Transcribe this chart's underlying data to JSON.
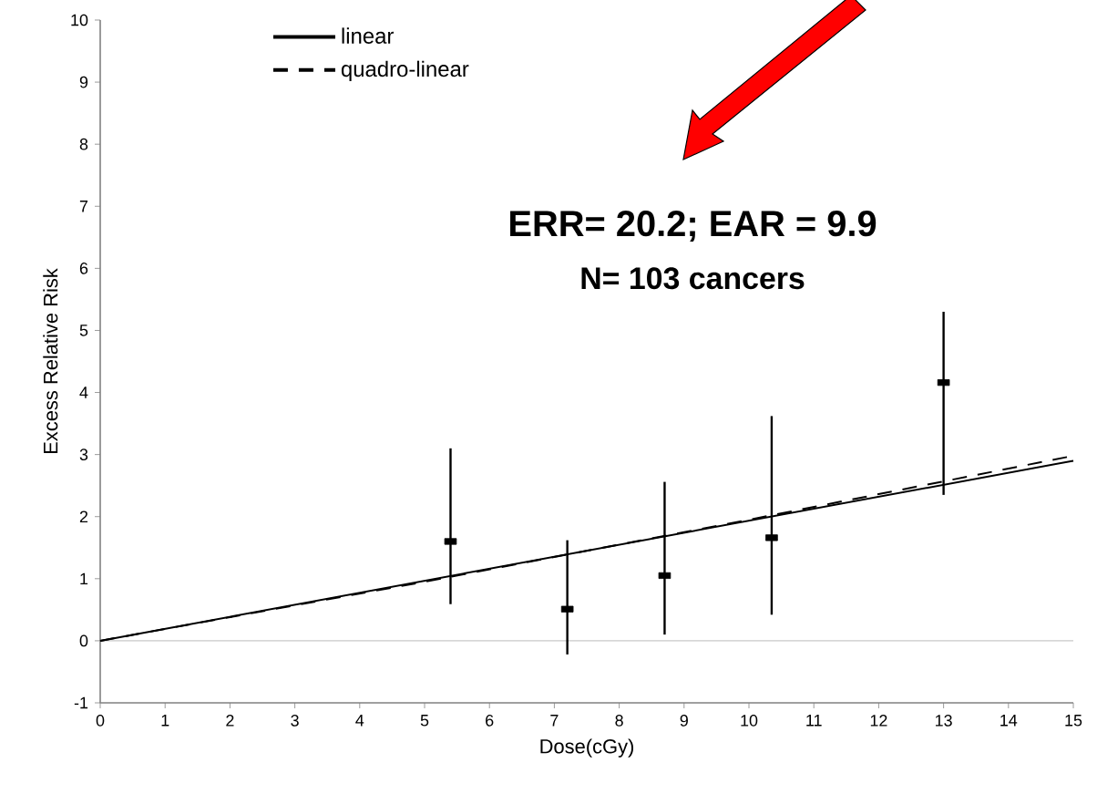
{
  "chart_data": {
    "type": "line",
    "xlabel": "Dose(cGy)",
    "ylabel": "Excess Relative Risk",
    "xlim": [
      0,
      15
    ],
    "ylim": [
      -1,
      10
    ],
    "xticks": [
      0,
      1,
      2,
      3,
      4,
      5,
      6,
      7,
      8,
      9,
      10,
      11,
      12,
      13,
      14,
      15
    ],
    "yticks": [
      -1,
      0,
      1,
      2,
      3,
      4,
      5,
      6,
      7,
      8,
      9,
      10
    ],
    "series": [
      {
        "name": "linear",
        "color": "#000000",
        "line_style": "solid",
        "x": [
          0,
          15
        ],
        "values": [
          0,
          2.9
        ]
      },
      {
        "name": "quadro-linear",
        "color": "#000000",
        "line_style": "dashed",
        "x": [
          0,
          5,
          10,
          15
        ],
        "values": [
          0,
          0.95,
          1.95,
          2.98
        ]
      },
      {
        "type": "scatter",
        "color": "#000000",
        "x": [
          5.4,
          7.2,
          8.7,
          10.35,
          13.0
        ],
        "values": [
          1.6,
          0.51,
          1.05,
          1.66,
          4.16
        ],
        "errors": [
          [
            0.59,
            3.1
          ],
          [
            -0.22,
            1.62
          ],
          [
            0.1,
            2.56
          ],
          [
            0.42,
            3.62
          ],
          [
            2.35,
            5.3
          ]
        ]
      }
    ],
    "ref_lines": [
      {
        "axis": "y",
        "value": 0,
        "color": "#aaaaaa"
      }
    ],
    "annotations": [
      "ERR= 20.2; EAR = 9.9",
      "N= 103 cancers"
    ],
    "legend": "top left",
    "grid": false
  }
}
